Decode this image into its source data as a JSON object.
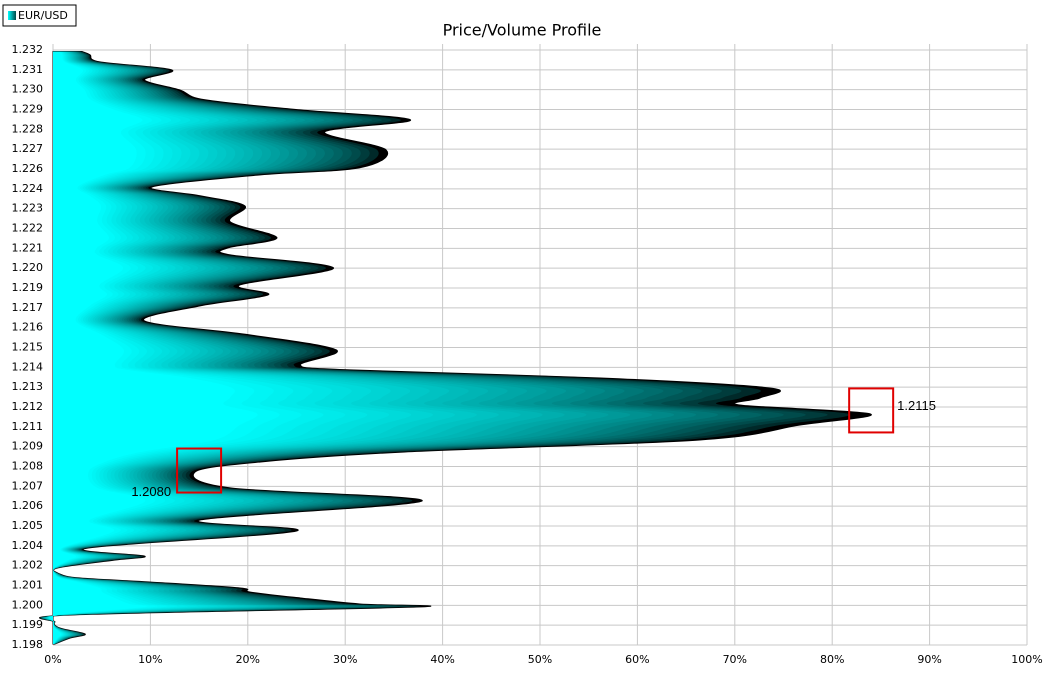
{
  "chart_data": {
    "type": "profile",
    "title": "Price/Volume Profile",
    "grid": true,
    "legend": "top-left",
    "series": [
      {
        "name": "EUR/USD",
        "color": "#00ffff",
        "edge_color": "#000000",
        "y": [
          1.1979,
          1.19825,
          1.19848,
          1.19883,
          1.19918,
          1.19959,
          1.20005,
          1.20023,
          1.20058,
          1.20093,
          1.20116,
          1.20151,
          1.20174,
          1.20198,
          1.20233,
          1.20279,
          1.20302,
          1.20349,
          1.20448,
          1.20512,
          1.20623,
          1.20699,
          1.20792,
          1.2085,
          1.20908,
          1.20978,
          1.21065,
          1.2113,
          1.21182,
          1.21223,
          1.21281,
          1.21339,
          1.21386,
          1.21415,
          1.21502,
          1.2159,
          1.21671,
          1.21759,
          1.21823,
          1.21881,
          1.2198,
          1.22056,
          1.22097,
          1.22155,
          1.22248,
          1.22341,
          1.224,
          1.22452,
          1.22522,
          1.22563,
          1.22667,
          1.22772,
          1.22842,
          1.229,
          1.22959,
          1.23017,
          1.23075,
          1.23133,
          1.2318,
          1.23221,
          1.2324
        ],
        "values": [
          0.2,
          1.8,
          3.3,
          0.7,
          0.2,
          1.8,
          37.3,
          31.5,
          25.4,
          20.2,
          19.2,
          9.9,
          2.8,
          0.7,
          0.5,
          6.4,
          9.4,
          3.6,
          25.0,
          15.1,
          37.9,
          18.2,
          14.6,
          21.3,
          36.1,
          66.4,
          76.7,
          83.9,
          70.5,
          72.6,
          73.6,
          56.2,
          30.5,
          25.4,
          29.1,
          20.2,
          9.4,
          15.1,
          22.1,
          19.2,
          28.8,
          18.2,
          18.0,
          23.0,
          18.2,
          19.7,
          15.1,
          10.2,
          21.3,
          31.5,
          34.2,
          27.9,
          36.7,
          25.4,
          15.6,
          13.0,
          9.4,
          12.2,
          4.8,
          3.8,
          3.0
        ]
      }
    ],
    "xlim": [
      0,
      100
    ],
    "xticks": [
      {
        "value": 0,
        "label": "0%"
      },
      {
        "value": 10,
        "label": "10%"
      },
      {
        "value": 20,
        "label": "20%"
      },
      {
        "value": 30,
        "label": "30%"
      },
      {
        "value": 40,
        "label": "40%"
      },
      {
        "value": 50,
        "label": "50%"
      },
      {
        "value": 60,
        "label": "60%"
      },
      {
        "value": 70,
        "label": "70%"
      },
      {
        "value": 80,
        "label": "80%"
      },
      {
        "value": 90,
        "label": "90%"
      },
      {
        "value": 100,
        "label": "100%"
      }
    ],
    "ylim": [
      1.19784,
      1.23249
    ],
    "yticks": [
      {
        "value": 1.19784,
        "label": "1.198"
      },
      {
        "value": 1.198995,
        "label": "1.199"
      },
      {
        "value": 1.20015,
        "label": "1.200"
      },
      {
        "value": 1.201305,
        "label": "1.201"
      },
      {
        "value": 1.20246,
        "label": "1.202"
      },
      {
        "value": 1.203615,
        "label": "1.204"
      },
      {
        "value": 1.20477,
        "label": "1.205"
      },
      {
        "value": 1.205925,
        "label": "1.206"
      },
      {
        "value": 1.20708,
        "label": "1.207"
      },
      {
        "value": 1.208235,
        "label": "1.208"
      },
      {
        "value": 1.20939,
        "label": "1.209"
      },
      {
        "value": 1.210545,
        "label": "1.211"
      },
      {
        "value": 1.2117,
        "label": "1.212"
      },
      {
        "value": 1.212855,
        "label": "1.213"
      },
      {
        "value": 1.21401,
        "label": "1.214"
      },
      {
        "value": 1.215165,
        "label": "1.215"
      },
      {
        "value": 1.21632,
        "label": "1.216"
      },
      {
        "value": 1.217475,
        "label": "1.217"
      },
      {
        "value": 1.21863,
        "label": "1.219"
      },
      {
        "value": 1.219785,
        "label": "1.220"
      },
      {
        "value": 1.22094,
        "label": "1.221"
      },
      {
        "value": 1.222095,
        "label": "1.222"
      },
      {
        "value": 1.22325,
        "label": "1.223"
      },
      {
        "value": 1.224405,
        "label": "1.224"
      },
      {
        "value": 1.22556,
        "label": "1.226"
      },
      {
        "value": 1.226715,
        "label": "1.227"
      },
      {
        "value": 1.22787,
        "label": "1.228"
      },
      {
        "value": 1.229025,
        "label": "1.229"
      },
      {
        "value": 1.23018,
        "label": "1.230"
      },
      {
        "value": 1.231335,
        "label": "1.231"
      },
      {
        "value": 1.23249,
        "label": "1.232"
      }
    ],
    "annotations": [
      {
        "text": "1.2115",
        "x": 84,
        "y": 1.2115,
        "color": "#e00000"
      },
      {
        "text": "1.2080",
        "x": 15,
        "y": 1.208,
        "color": "#e00000"
      }
    ]
  }
}
